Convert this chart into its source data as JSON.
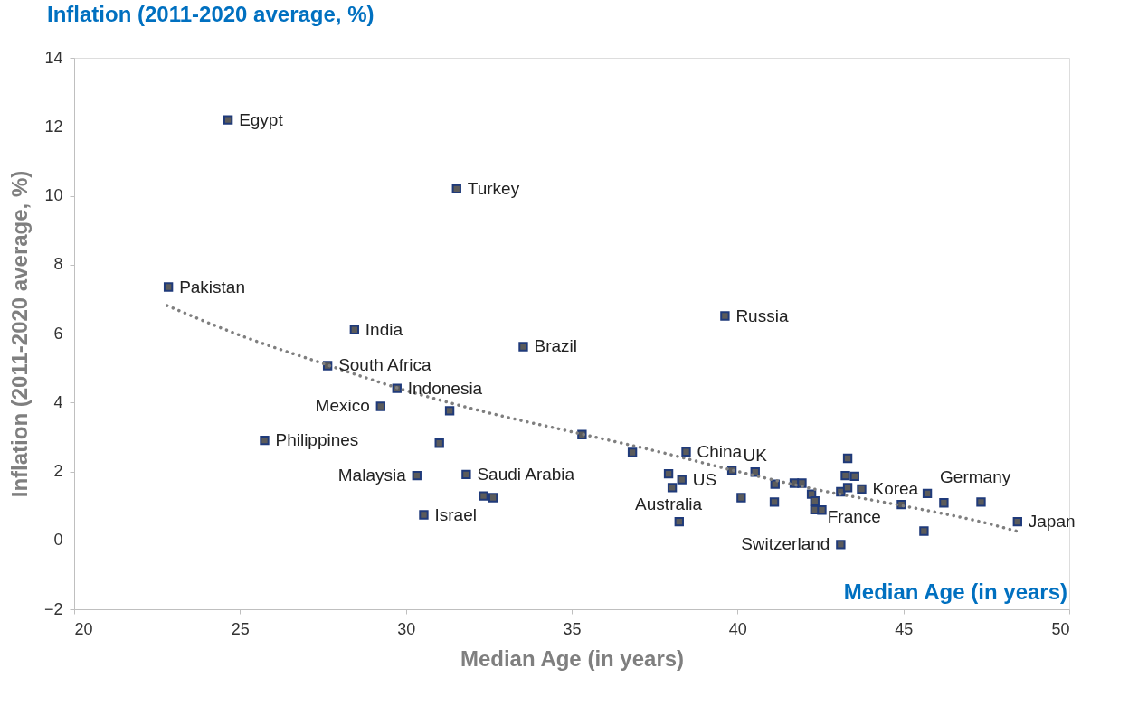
{
  "chart_data": {
    "type": "scatter",
    "title": "Inflation (2011-2020 average, %)",
    "xlabel": "Median Age (in years)",
    "ylabel": "Inflation (2011-2020 average, %)",
    "xlim": [
      20,
      50
    ],
    "xticks": [
      20,
      25,
      30,
      35,
      40,
      45,
      50
    ],
    "ylim": [
      -2,
      14
    ],
    "yticks": [
      -2,
      0,
      2,
      4,
      6,
      8,
      10,
      12,
      14
    ],
    "grid": false,
    "marker": "square",
    "series": [
      {
        "color": "#5b5b5b",
        "x": [
          24.64,
          31.53,
          22.84,
          28.45,
          33.54,
          39.62,
          27.64,
          29.73,
          29.24,
          31.32,
          25.74,
          31.01,
          30.33,
          31.82,
          32.34,
          32.63,
          30.54,
          35.31,
          36.83,
          38.45,
          37.92,
          38.32,
          38.03,
          38.24,
          39.83,
          40.53,
          40.11,
          41.13,
          41.11,
          41.71,
          41.94,
          42.23,
          42.33,
          42.33,
          42.54,
          43.11,
          43.32,
          43.25,
          43.53,
          43.32,
          43.74,
          43.11,
          44.94,
          45.72,
          45.62,
          46.22,
          47.34,
          48.44
        ],
        "values": [
          12.2,
          10.2,
          7.35,
          6.11,
          5.62,
          6.51,
          5.07,
          4.41,
          3.89,
          3.76,
          2.9,
          2.82,
          1.88,
          1.91,
          1.29,
          1.24,
          0.74,
          3.07,
          2.55,
          2.57,
          1.93,
          1.76,
          1.53,
          0.54,
          2.03,
          1.98,
          1.24,
          1.63,
          1.11,
          1.66,
          1.66,
          1.34,
          1.14,
          0.89,
          0.88,
          1.41,
          1.53,
          1.88,
          1.86,
          2.38,
          1.49,
          -0.12,
          1.04,
          1.36,
          0.27,
          1.09,
          1.11,
          0.54
        ]
      },
      {
        "type": "line",
        "color": "#7f7f7f",
        "line_style": "dotted",
        "marker": "none",
        "x": [
          22.8,
          25,
          27.6,
          30,
          32.5,
          35,
          37.5,
          40,
          42.5,
          45,
          47.5,
          48.4
        ],
        "values": [
          6.81,
          5.95,
          5.1,
          4.35,
          3.7,
          3.15,
          2.6,
          2.0,
          1.45,
          1.0,
          0.5,
          0.27
        ]
      }
    ],
    "annotations": [
      {
        "text": "Egypt",
        "x": 24.64,
        "y": 12.2
      },
      {
        "text": "Turkey",
        "x": 31.53,
        "y": 10.2
      },
      {
        "text": "Pakistan",
        "x": 22.84,
        "y": 7.35
      },
      {
        "text": "India",
        "x": 28.45,
        "y": 6.11
      },
      {
        "text": "Brazil",
        "x": 33.54,
        "y": 5.62
      },
      {
        "text": "Russia",
        "x": 39.62,
        "y": 6.51
      },
      {
        "text": "South Africa",
        "x": 27.64,
        "y": 5.07
      },
      {
        "text": "Indonesia",
        "x": 29.73,
        "y": 4.41
      },
      {
        "text": "Mexico",
        "x": 29.24,
        "y": 3.89
      },
      {
        "text": "Philippines",
        "x": 25.74,
        "y": 2.9
      },
      {
        "text": "Saudi Arabia",
        "x": 31.82,
        "y": 1.91
      },
      {
        "text": "Malaysia",
        "x": 30.33,
        "y": 1.88
      },
      {
        "text": "Israel",
        "x": 30.54,
        "y": 0.74
      },
      {
        "text": "China",
        "x": 38.45,
        "y": 2.57
      },
      {
        "text": "Australia",
        "x": 37.92,
        "y": 1.93
      },
      {
        "text": "US",
        "x": 38.32,
        "y": 1.76
      },
      {
        "text": "UK",
        "x": 40.53,
        "y": 1.98
      },
      {
        "text": "Korea",
        "x": 43.74,
        "y": 1.49
      },
      {
        "text": "Germany",
        "x": 45.72,
        "y": 1.36
      },
      {
        "text": "France",
        "x": 42.33,
        "y": 1.14
      },
      {
        "text": "Switzerland",
        "x": 43.11,
        "y": -0.12
      },
      {
        "text": "Japan",
        "x": 48.44,
        "y": 0.54
      },
      "Median Age (in years)"
    ]
  }
}
